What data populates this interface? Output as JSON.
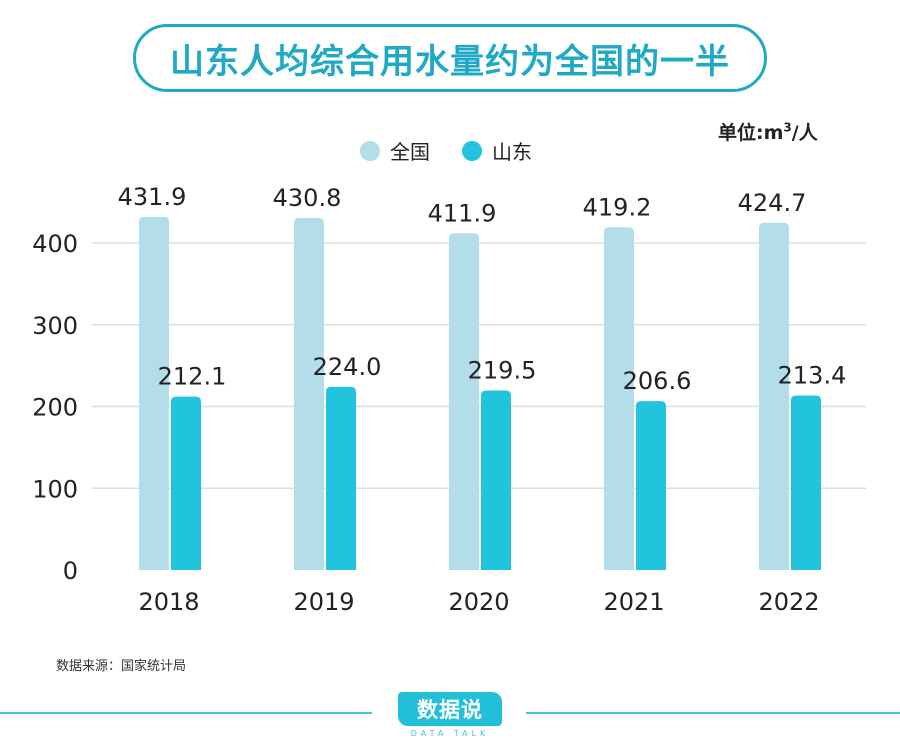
{
  "header": {
    "title": "山东人均综合用水量约为全国的一半"
  },
  "unit": {
    "prefix": "单位:m",
    "sup": "3",
    "suffix": "/人"
  },
  "colors": {
    "national": "#b2dde9",
    "shandong": "#22c3dc",
    "accent": "#1fa9c4",
    "grid": "#dddddd"
  },
  "chart_data": {
    "type": "bar",
    "title": "山东人均综合用水量约为全国的一半",
    "xlabel": "",
    "ylabel": "单位:m³/人",
    "categories": [
      "2018",
      "2019",
      "2020",
      "2021",
      "2022"
    ],
    "series": [
      {
        "name": "全国",
        "values": [
          431.9,
          430.8,
          411.9,
          419.2,
          424.7
        ],
        "labels": [
          "431.9",
          "430.8",
          "411.9",
          "419.2",
          "424.7"
        ]
      },
      {
        "name": "山东",
        "values": [
          212.1,
          224.0,
          219.5,
          206.6,
          213.4
        ],
        "labels": [
          "212.1",
          "224.0",
          "219.5",
          "206.6",
          "213.4"
        ]
      }
    ],
    "ylim": [
      0,
      400
    ],
    "yticks": [
      "0",
      "100",
      "200",
      "300",
      "400"
    ],
    "ytick_values": [
      0,
      100,
      200,
      300,
      400
    ],
    "grid": true,
    "legend_position": "top-center"
  },
  "footer": {
    "source": "数据来源：国家统计局",
    "logo_text": "数据说",
    "logo_sub": "DATA TALK"
  }
}
